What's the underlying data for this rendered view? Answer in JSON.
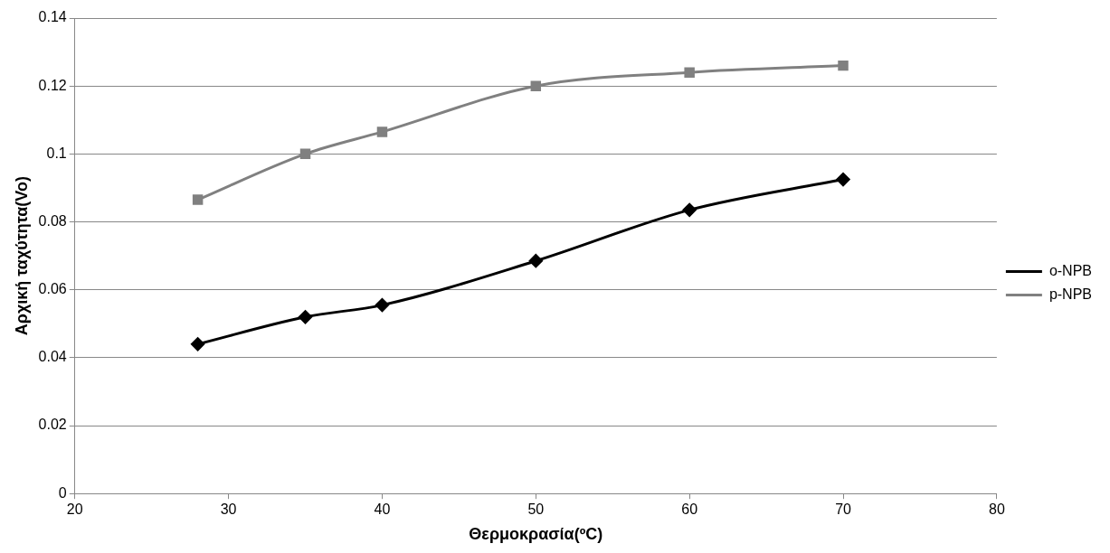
{
  "chart_data": {
    "type": "line",
    "xlabel": "Θερμοκρασία(ºC)",
    "ylabel": "Αρχική ταχύτητα(Vo)",
    "x": [
      28,
      35,
      40,
      50,
      60,
      70
    ],
    "series": [
      {
        "name": "o-NPB",
        "color": "#000000",
        "marker": "diamond",
        "values": [
          0.044,
          0.052,
          0.0555,
          0.0685,
          0.0835,
          0.0925
        ]
      },
      {
        "name": "p-NPB",
        "color": "#808080",
        "marker": "square",
        "values": [
          0.0865,
          0.1,
          0.1065,
          0.12,
          0.124,
          0.126
        ]
      }
    ],
    "xlim": [
      20,
      80
    ],
    "xticks": [
      20,
      30,
      40,
      50,
      60,
      70,
      80
    ],
    "ylim": [
      0,
      0.14
    ],
    "yticks": [
      0,
      0.02,
      0.04,
      0.06,
      0.08,
      0.1,
      0.12,
      0.14
    ],
    "grid": "y",
    "legend": "right"
  }
}
